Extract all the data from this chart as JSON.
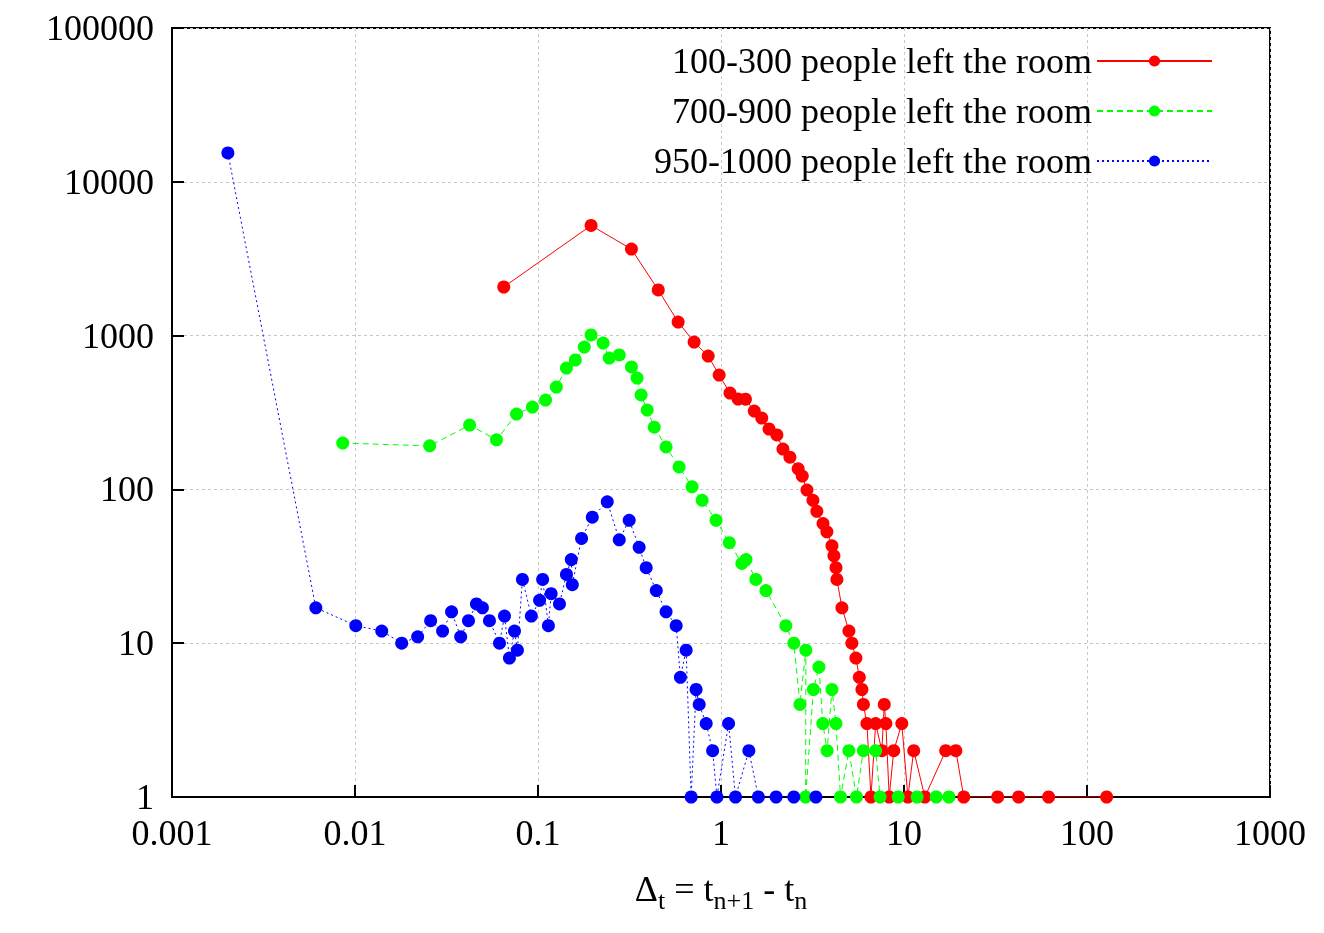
{
  "chart_data": {
    "type": "line",
    "xlabel": "Δ$_{t}$ = t$_{n+1}$ - t$_{n}$",
    "log": "xy",
    "grid": true,
    "legend": "top right",
    "marker": "circle",
    "xlim": [
      0.001,
      1000
    ],
    "xticks": [
      0.001,
      0.01,
      0.1,
      1,
      10,
      100,
      1000
    ],
    "ylim": [
      1,
      100000
    ],
    "yticks": [
      1,
      10,
      100,
      1000,
      10000,
      100000
    ],
    "series": [
      {
        "name": "100-300 people left the room",
        "color": "#ff0000",
        "line_style": "solid",
        "x": [
          0.065,
          0.195,
          0.324,
          0.454,
          0.583,
          0.713,
          0.851,
          0.977,
          1.12,
          1.24,
          1.36,
          1.52,
          1.67,
          1.83,
          2.02,
          2.18,
          2.38,
          2.64,
          2.78,
          2.95,
          3.18,
          3.34,
          3.61,
          3.79,
          4.04,
          4.14,
          4.25,
          4.3,
          4.58,
          5.0,
          5.19,
          5.46,
          5.7,
          5.89,
          6.0,
          6.27,
          6.6,
          7.0,
          7.57,
          7.8,
          7.96,
          8.3,
          8.79,
          9.73,
          10.5,
          11.3,
          13,
          16.9,
          19.2,
          21.2,
          32.5,
          42.3,
          61.7,
          128
        ],
        "values": [
          2070,
          5200,
          3650,
          1980,
          1225,
          908,
          736,
          554,
          423,
          387,
          386,
          323,
          291,
          247,
          226,
          183,
          162,
          136,
          122,
          99,
          85,
          72,
          60,
          53,
          43,
          37,
          31,
          26,
          17,
          12,
          10,
          8,
          6,
          5,
          4,
          3,
          1,
          3,
          2,
          4,
          3,
          1,
          2,
          3,
          1,
          2,
          1,
          2,
          2,
          1,
          1,
          1,
          1,
          1
        ]
      },
      {
        "name": "700-900 people left the room",
        "color": "#00ff00",
        "line_style": "dashed",
        "x": [
          0.00857,
          0.0256,
          0.0423,
          0.0593,
          0.0763,
          0.0932,
          0.11,
          0.126,
          0.143,
          0.16,
          0.179,
          0.195,
          0.227,
          0.245,
          0.278,
          0.324,
          0.348,
          0.366,
          0.395,
          0.432,
          0.501,
          0.59,
          0.695,
          0.789,
          0.94,
          1.11,
          1.3,
          1.37,
          1.55,
          1.76,
          2.26,
          2.5,
          2.7,
          2.91,
          2.9,
          3.2,
          3.43,
          3.6,
          3.8,
          4.04,
          4.25,
          4.5,
          5.0,
          5.5,
          6.0,
          7.0,
          7.4,
          9.3,
          11.8,
          15,
          17.6
        ],
        "values": [
          200,
          192,
          262,
          210,
          309,
          343,
          381,
          463,
          615,
          694,
          843,
          1010,
          895,
          715,
          748,
          625,
          530,
          411,
          328,
          254,
          189,
          140,
          104,
          85,
          63,
          45,
          33,
          35,
          26,
          22,
          13,
          10,
          4,
          9,
          1,
          5,
          7,
          3,
          2,
          5,
          3,
          1,
          2,
          1,
          2,
          2,
          1,
          1,
          1,
          1,
          1
        ]
      },
      {
        "name": "950-1000 people left the room",
        "color": "#0000ff",
        "line_style": "dotted",
        "x": [
          0.00202,
          0.00611,
          0.0101,
          0.014,
          0.018,
          0.022,
          0.0259,
          0.0301,
          0.0337,
          0.0378,
          0.0417,
          0.0461,
          0.0497,
          0.0543,
          0.0616,
          0.0656,
          0.0698,
          0.0744,
          0.0772,
          0.0822,
          0.092,
          0.102,
          0.106,
          0.114,
          0.118,
          0.131,
          0.143,
          0.152,
          0.154,
          0.173,
          0.198,
          0.239,
          0.278,
          0.315,
          0.357,
          0.39,
          0.443,
          0.501,
          0.569,
          0.6,
          0.645,
          0.687,
          0.731,
          0.76,
          0.83,
          0.9,
          0.95,
          1.1,
          1.2,
          1.42,
          1.6,
          2.0,
          2.5,
          3.3
        ],
        "values": [
          15400,
          17,
          13,
          12,
          10,
          11,
          14,
          12,
          16,
          11,
          14,
          18,
          17,
          14,
          10,
          15,
          8,
          12,
          9,
          26,
          15,
          19,
          26,
          13,
          21,
          18,
          28,
          35,
          24,
          48,
          66,
          83,
          47,
          63,
          42,
          31,
          22,
          16,
          13,
          6,
          9,
          1,
          5,
          4,
          3,
          2,
          1,
          3,
          1,
          2,
          1,
          1,
          1,
          1
        ]
      }
    ]
  }
}
